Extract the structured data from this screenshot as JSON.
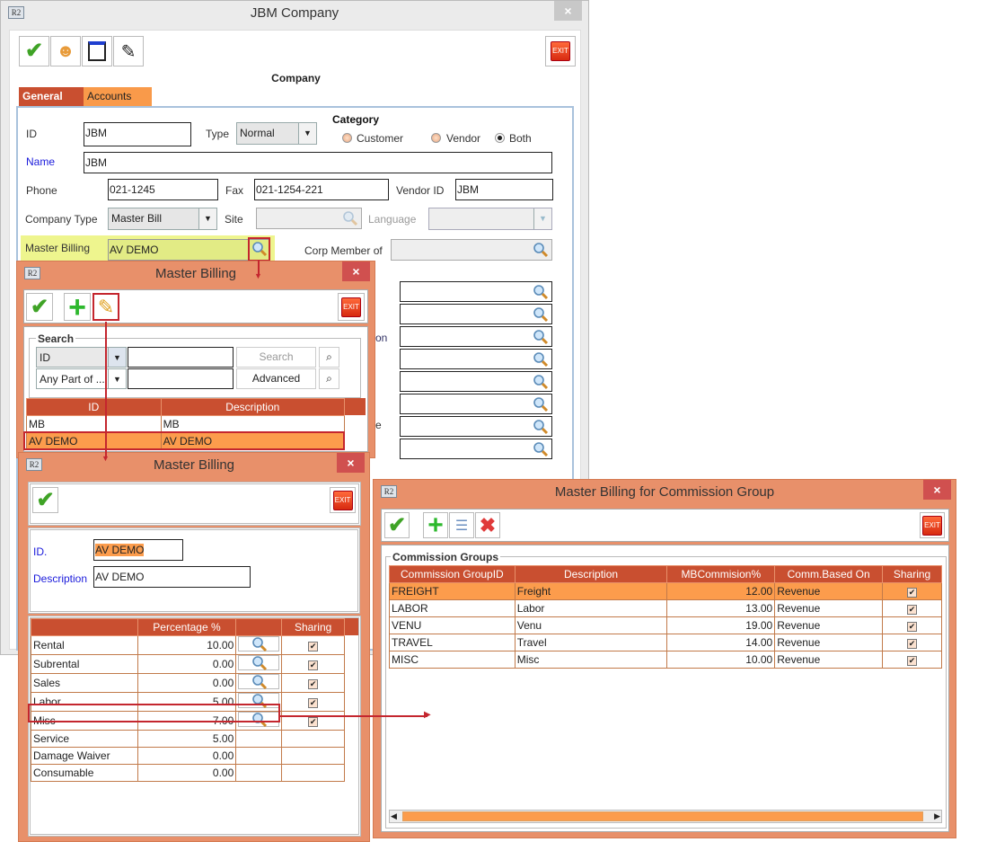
{
  "company": {
    "title": "JBM Company",
    "heading": "Company",
    "close": "×",
    "exit": "EXIT",
    "tabs": [
      {
        "label": "General",
        "active": true
      },
      {
        "label": "Accounts",
        "active": false
      }
    ],
    "id_label": "ID",
    "id_value": "JBM",
    "type_label": "Type",
    "type_value": "Normal",
    "category_label": "Category",
    "category_options": [
      "Customer",
      "Vendor",
      "Both"
    ],
    "category_selected": "Both",
    "name_label": "Name",
    "name_value": "JBM",
    "phone_label": "Phone",
    "phone_value": "021-1245",
    "fax_label": "Fax",
    "fax_value": "021-1254-221",
    "vendor_label": "Vendor ID",
    "vendor_value": "JBM",
    "company_type_label": "Company Type",
    "company_type_value": "Master Bill",
    "site_label": "Site",
    "language_label": "Language",
    "master_billing_label": "Master Billing",
    "master_billing_value": "AV DEMO",
    "corp_label": "Corp Member of",
    "partial_labels": [
      "on",
      "e"
    ]
  },
  "master_billing_list": {
    "title": "Master Billing",
    "close": "×",
    "exit": "EXIT",
    "search_group": "Search",
    "field_value": "ID",
    "match_value": "Any Part of ...",
    "search_button": "Search",
    "advanced_button": "Advanced",
    "columns": [
      "ID",
      "Description"
    ],
    "rows": [
      {
        "id": "MB",
        "description": "MB",
        "selected": false
      },
      {
        "id": "AV DEMO",
        "description": "AV DEMO",
        "selected": true
      }
    ]
  },
  "master_billing_edit": {
    "title": "Master Billing",
    "close": "×",
    "exit": "EXIT",
    "id_label": "ID.",
    "id_value": "AV DEMO",
    "description_label": "Description",
    "description_value": "AV DEMO",
    "columns": [
      "",
      "Percentage %",
      "",
      "Sharing"
    ],
    "rows": [
      {
        "name": "Rental",
        "pct": "10.00",
        "lookup": true,
        "sharing": true
      },
      {
        "name": "Subrental",
        "pct": "0.00",
        "lookup": true,
        "sharing": true
      },
      {
        "name": "Sales",
        "pct": "0.00",
        "lookup": true,
        "sharing": true
      },
      {
        "name": "Labor",
        "pct": "5.00",
        "lookup": true,
        "sharing": true
      },
      {
        "name": "Misc",
        "pct": "7.00",
        "lookup": true,
        "sharing": true
      },
      {
        "name": "Service",
        "pct": "5.00",
        "lookup": false,
        "sharing": false
      },
      {
        "name": "Damage Waiver",
        "pct": "0.00",
        "lookup": false,
        "sharing": false
      },
      {
        "name": "Consumable",
        "pct": "0.00",
        "lookup": false,
        "sharing": false
      }
    ]
  },
  "commission": {
    "title": "Master Billing for Commission Group",
    "close": "×",
    "exit": "EXIT",
    "group_label": "Commission Groups",
    "columns": [
      "Commission GroupID",
      "Description",
      "MBCommision%",
      "Comm.Based On",
      "Sharing"
    ],
    "rows": [
      {
        "id": "FREIGHT",
        "description": "Freight",
        "pct": "12.00",
        "based": "Revenue",
        "sharing": true,
        "selected": true
      },
      {
        "id": "LABOR",
        "description": "Labor",
        "pct": "13.00",
        "based": "Revenue",
        "sharing": true,
        "selected": false
      },
      {
        "id": "VENU",
        "description": "Venu",
        "pct": "19.00",
        "based": "Revenue",
        "sharing": true,
        "selected": false
      },
      {
        "id": "TRAVEL",
        "description": "Travel",
        "pct": "14.00",
        "based": "Revenue",
        "sharing": true,
        "selected": false
      },
      {
        "id": "MISC",
        "description": "Misc",
        "pct": "10.00",
        "based": "Revenue",
        "sharing": true,
        "selected": false
      }
    ]
  },
  "colors": {
    "accent": "#c94f30",
    "dialog": "#e8906a",
    "selected_row": "#fc9c4c",
    "highlight": "#e2eb85",
    "annotation": "#c4262e"
  }
}
